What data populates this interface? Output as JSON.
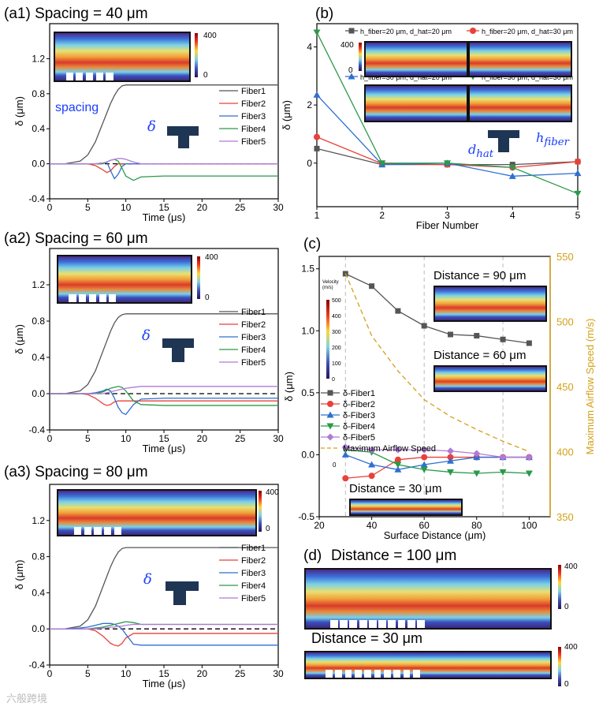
{
  "panels": {
    "a1": "(a1) Spacing = 40 μm",
    "a2": "(a2) Spacing = 60 μm",
    "a3": "(a3) Spacing = 80 μm",
    "b": "(b)",
    "c": "(c)",
    "d": "(d)"
  },
  "insets": {
    "cb_max": "400",
    "cb_min": "0",
    "spacing_label": "spacing",
    "delta_symbol": "δ",
    "d_hat": "d",
    "d_hat_sub": "hat",
    "h_fiber": "h",
    "h_fiber_sub": "fiber",
    "fiber_nums": [
      "1",
      "2",
      "3",
      "4",
      "5"
    ],
    "c_dist90": "Distance = 90 μm",
    "c_dist60": "Distance = 60 μm",
    "c_dist30": "Distance = 30 μm",
    "c_cb_title": "Velocity (m/s)",
    "c_cb_ticks": [
      "500",
      "400",
      "300",
      "200",
      "100",
      "0"
    ],
    "c_zero": "0",
    "d_dist100": "Distance = 100 μm",
    "d_dist30": "Distance = 30 μm"
  },
  "watermark": "六般跨境",
  "chart_data": [
    {
      "id": "a1",
      "type": "line",
      "xlabel": "Time (μs)",
      "ylabel": "δ (μm)",
      "xlim": [
        0,
        30
      ],
      "ylim": [
        -0.4,
        1.6
      ],
      "xticks": [
        0,
        5,
        10,
        15,
        20,
        25,
        30
      ],
      "yticks": [
        -0.4,
        0.0,
        0.4,
        0.8,
        1.2
      ],
      "legend": "right",
      "x": [
        0,
        2,
        4,
        5,
        6,
        7,
        7.5,
        8,
        8.5,
        9,
        9.5,
        10,
        11,
        12,
        15,
        20,
        30
      ],
      "series": [
        {
          "name": "Fiber1",
          "color": "#555555",
          "values": [
            0,
            0,
            0.03,
            0.1,
            0.25,
            0.47,
            0.58,
            0.69,
            0.78,
            0.85,
            0.89,
            0.9,
            0.9,
            0.9,
            0.9,
            0.9,
            0.9
          ]
        },
        {
          "name": "Fiber2",
          "color": "#e8413a",
          "values": [
            0,
            0,
            0,
            0,
            -0.02,
            -0.07,
            -0.1,
            -0.08,
            -0.03,
            0,
            0,
            0,
            0,
            0,
            0,
            0,
            0
          ]
        },
        {
          "name": "Fiber3",
          "color": "#2f6fd0",
          "values": [
            0,
            0,
            0,
            0,
            0,
            0.01,
            0.02,
            -0.08,
            -0.17,
            -0.12,
            -0.03,
            0,
            0,
            0,
            0,
            0,
            0
          ]
        },
        {
          "name": "Fiber4",
          "color": "#2a9a4a",
          "values": [
            0,
            0,
            0,
            0,
            0,
            0,
            0.02,
            0.04,
            0.05,
            0.03,
            -0.05,
            -0.14,
            -0.19,
            -0.15,
            -0.14,
            -0.14,
            -0.14
          ]
        },
        {
          "name": "Fiber5",
          "color": "#b07ad8",
          "values": [
            0,
            0,
            0,
            0,
            0,
            0.01,
            0.02,
            0.04,
            0.05,
            0.06,
            0.06,
            0.05,
            0.02,
            0,
            0,
            0,
            0
          ]
        }
      ]
    },
    {
      "id": "a2",
      "type": "line",
      "xlabel": "Time (μs)",
      "ylabel": "δ (μm)",
      "xlim": [
        0,
        30
      ],
      "ylim": [
        -0.4,
        1.6
      ],
      "xticks": [
        0,
        5,
        10,
        15,
        20,
        25,
        30
      ],
      "yticks": [
        -0.4,
        0.0,
        0.4,
        0.8,
        1.2
      ],
      "legend": "right",
      "x": [
        0,
        2,
        4,
        5,
        6,
        7,
        7.5,
        8,
        8.5,
        9,
        9.5,
        10,
        11,
        12,
        15,
        20,
        30
      ],
      "series": [
        {
          "name": "Fiber1",
          "color": "#555555",
          "values": [
            0,
            0,
            0.03,
            0.1,
            0.25,
            0.47,
            0.58,
            0.69,
            0.78,
            0.84,
            0.87,
            0.88,
            0.88,
            0.88,
            0.88,
            0.88,
            0.88
          ]
        },
        {
          "name": "Fiber2",
          "color": "#e8413a",
          "values": [
            0,
            0,
            0,
            -0.01,
            -0.05,
            -0.11,
            -0.13,
            -0.12,
            -0.09,
            -0.08,
            -0.08,
            -0.08,
            -0.08,
            -0.08,
            -0.08,
            -0.08,
            -0.08
          ]
        },
        {
          "name": "Fiber3",
          "color": "#2f6fd0",
          "values": [
            0,
            0,
            0,
            0,
            0.01,
            0.03,
            0.05,
            0.03,
            -0.05,
            -0.15,
            -0.21,
            -0.23,
            -0.12,
            -0.06,
            -0.05,
            -0.05,
            -0.05
          ]
        },
        {
          "name": "Fiber4",
          "color": "#2a9a4a",
          "values": [
            0,
            0,
            0,
            0,
            0,
            0.02,
            0.04,
            0.06,
            0.07,
            0.08,
            0.07,
            0.03,
            -0.08,
            -0.12,
            -0.13,
            -0.13,
            -0.13
          ]
        },
        {
          "name": "Fiber5",
          "color": "#b07ad8",
          "values": [
            0,
            0,
            0,
            0,
            0,
            0,
            0.01,
            0.02,
            0.03,
            0.04,
            0.05,
            0.06,
            0.07,
            0.08,
            0.08,
            0.08,
            0.08
          ]
        }
      ]
    },
    {
      "id": "a3",
      "type": "line",
      "xlabel": "Time (μs)",
      "ylabel": "δ (μm)",
      "xlim": [
        0,
        30
      ],
      "ylim": [
        -0.4,
        1.6
      ],
      "xticks": [
        0,
        5,
        10,
        15,
        20,
        25,
        30
      ],
      "yticks": [
        -0.4,
        0.0,
        0.4,
        0.8,
        1.2
      ],
      "legend": "right",
      "x": [
        0,
        2,
        4,
        5,
        6,
        7,
        7.5,
        8,
        8.5,
        9,
        9.5,
        10,
        11,
        12,
        15,
        20,
        30
      ],
      "series": [
        {
          "name": "Fiber1",
          "color": "#555555",
          "values": [
            0,
            0,
            0.03,
            0.1,
            0.25,
            0.47,
            0.58,
            0.69,
            0.78,
            0.85,
            0.89,
            0.9,
            0.9,
            0.9,
            0.9,
            0.9,
            0.9
          ]
        },
        {
          "name": "Fiber2",
          "color": "#e8413a",
          "values": [
            0,
            0,
            0,
            0,
            -0.02,
            -0.08,
            -0.12,
            -0.16,
            -0.18,
            -0.19,
            -0.16,
            -0.1,
            -0.05,
            -0.05,
            -0.05,
            -0.05,
            -0.05
          ]
        },
        {
          "name": "Fiber3",
          "color": "#2f6fd0",
          "values": [
            0,
            0,
            0.01,
            0.02,
            0.04,
            0.06,
            0.06,
            0.06,
            0.05,
            0.03,
            0,
            -0.06,
            -0.17,
            -0.18,
            -0.18,
            -0.18,
            -0.18
          ]
        },
        {
          "name": "Fiber4",
          "color": "#2a9a4a",
          "values": [
            0,
            0,
            0,
            0,
            0.01,
            0.02,
            0.03,
            0.04,
            0.05,
            0.06,
            0.07,
            0.08,
            0.07,
            0.05,
            0.05,
            0.05,
            0.05
          ]
        },
        {
          "name": "Fiber5",
          "color": "#b07ad8",
          "values": [
            0,
            0,
            0,
            0,
            0,
            0.01,
            0.01,
            0.02,
            0.02,
            0.03,
            0.03,
            0.04,
            0.05,
            0.05,
            0.05,
            0.05,
            0.05
          ]
        }
      ]
    },
    {
      "id": "b",
      "type": "line",
      "xlabel": "Fiber Number",
      "ylabel": "δ (μm)",
      "xlim": [
        1,
        5
      ],
      "ylim": [
        -1.5,
        4.8
      ],
      "xticks": [
        1,
        2,
        3,
        4,
        5
      ],
      "yticks": [
        0,
        2,
        4
      ],
      "legend": "top",
      "x": [
        1,
        2,
        3,
        4,
        5
      ],
      "series": [
        {
          "name": "h_fiber=20 μm, d_hat=20 μm",
          "color": "#555555",
          "marker": "square",
          "values": [
            0.5,
            -0.05,
            -0.05,
            -0.05,
            0.05
          ]
        },
        {
          "name": "h_fiber=20 μm, d_hat=30 μm",
          "color": "#e8413a",
          "marker": "circle",
          "values": [
            0.9,
            -0.02,
            -0.05,
            -0.15,
            0.05
          ]
        },
        {
          "name": "h_fiber=30 μm, d_hat=20 μm",
          "color": "#2f6fd0",
          "marker": "triangle-up",
          "values": [
            2.35,
            -0.05,
            0.0,
            -0.45,
            -0.35
          ]
        },
        {
          "name": "h_fiber=30 μm, d_hat=30 μm",
          "color": "#2a9a4a",
          "marker": "triangle-down",
          "values": [
            4.5,
            0.0,
            0.0,
            -0.15,
            -1.05
          ]
        }
      ]
    },
    {
      "id": "c",
      "type": "line",
      "xlabel": "Surface Distance (μm)",
      "ylabel": "δ (μm)",
      "ylabel_right": "Maximum Airflow Speed (m/s)",
      "xlim": [
        20,
        108
      ],
      "ylim": [
        -0.5,
        1.6
      ],
      "ylim_right": [
        350,
        550
      ],
      "xticks": [
        20,
        40,
        60,
        80,
        100
      ],
      "yticks": [
        -0.5,
        0.0,
        0.5,
        1.0,
        1.5
      ],
      "yticks_right": [
        350,
        400,
        450,
        500,
        550
      ],
      "vlines": [
        30,
        60,
        90
      ],
      "legend": "center-left",
      "x": [
        30,
        40,
        50,
        60,
        70,
        80,
        90,
        100
      ],
      "series": [
        {
          "name": "δ-Fiber1",
          "color": "#555555",
          "marker": "square",
          "values": [
            1.46,
            1.36,
            1.16,
            1.04,
            0.97,
            0.96,
            0.93,
            0.9
          ]
        },
        {
          "name": "δ-Fiber2",
          "color": "#e8413a",
          "marker": "circle",
          "values": [
            -0.19,
            -0.17,
            -0.04,
            -0.02,
            -0.02,
            -0.02,
            -0.02,
            -0.02
          ]
        },
        {
          "name": "δ-Fiber3",
          "color": "#2f6fd0",
          "marker": "triangle-up",
          "values": [
            0.0,
            -0.08,
            -0.12,
            -0.08,
            -0.05,
            -0.02,
            -0.02,
            -0.02
          ]
        },
        {
          "name": "δ-Fiber4",
          "color": "#2a9a4a",
          "marker": "triangle-down",
          "values": [
            0.04,
            0.02,
            -0.08,
            -0.12,
            -0.14,
            -0.15,
            -0.14,
            -0.15
          ]
        },
        {
          "name": "δ-Fiber5",
          "color": "#b07ad8",
          "marker": "diamond",
          "values": [
            0.06,
            0.04,
            0.04,
            0.04,
            0.03,
            0.01,
            -0.02,
            -0.02
          ]
        },
        {
          "name": "Maximum Airflow Speed",
          "color": "#d4a017",
          "dashed": true,
          "axis": "right",
          "values": [
            537,
            489,
            462,
            440,
            427,
            417,
            408,
            400
          ]
        }
      ]
    }
  ]
}
